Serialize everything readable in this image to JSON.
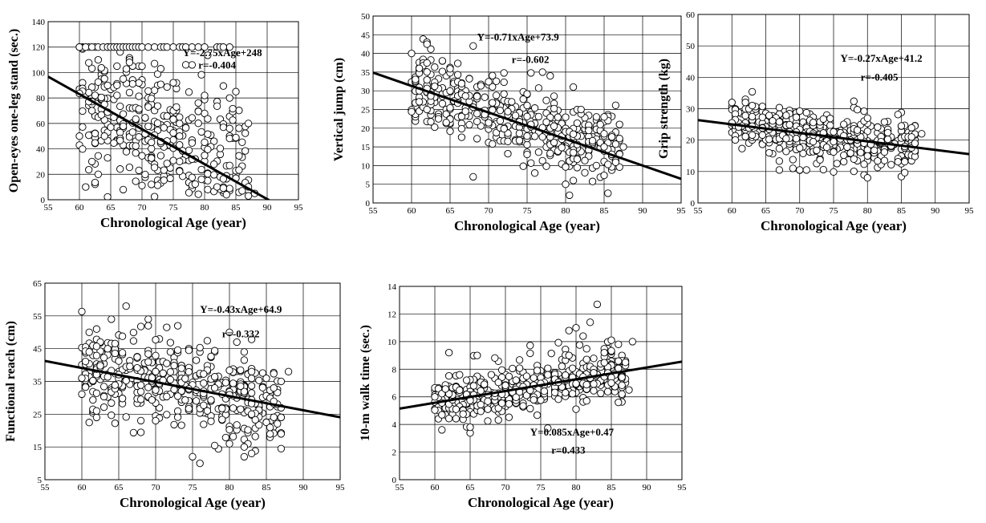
{
  "chart_data": [
    {
      "id": "oneleg",
      "type": "scatter",
      "xlabel": "Chronological Age (year)",
      "ylabel": "Open-eyes one-leg stand (sec.)",
      "xlim": [
        55,
        95
      ],
      "ylim": [
        0,
        140
      ],
      "xticks": [
        55,
        60,
        65,
        70,
        75,
        80,
        85,
        90,
        95
      ],
      "yticks": [
        0,
        20,
        40,
        60,
        80,
        100,
        120,
        140
      ],
      "grid": true,
      "equation": "Y=-2.75xAge+248",
      "r_label": "r=-0.404",
      "equation_pos": [
        76.5,
        113
      ],
      "r_pos": [
        79,
        103
      ],
      "regression": {
        "slope": -2.75,
        "intercept": 248
      },
      "seed": 11,
      "n_points": 390,
      "noise_sd": 30,
      "cap": 120,
      "points": [
        [
          60,
          50
        ],
        [
          61,
          10
        ],
        [
          62,
          70
        ],
        [
          62,
          30
        ],
        [
          63,
          110
        ],
        [
          63,
          20
        ],
        [
          64,
          75
        ],
        [
          64,
          50
        ],
        [
          66,
          105
        ],
        [
          66,
          90
        ],
        [
          67,
          95
        ],
        [
          68,
          110
        ],
        [
          68,
          108
        ],
        [
          70,
          105
        ],
        [
          72,
          107
        ],
        [
          73,
          103
        ],
        [
          75,
          92
        ],
        [
          78,
          106
        ],
        [
          80,
          82
        ],
        [
          84,
          80
        ],
        [
          85,
          85
        ],
        [
          87,
          60
        ],
        [
          83,
          57
        ],
        [
          84,
          56
        ],
        [
          88,
          5
        ],
        [
          87,
          3
        ],
        [
          86,
          7
        ]
      ],
      "capped_x": [
        61,
        62,
        63,
        63.8,
        64.5,
        65,
        65.5,
        66,
        66.5,
        67,
        67.5,
        68,
        68.5,
        69,
        69.5,
        70,
        71,
        72,
        73,
        73.5,
        74,
        75,
        76,
        76.5,
        77,
        78,
        79,
        80,
        82,
        82.5,
        83
      ]
    },
    {
      "id": "jump",
      "type": "scatter",
      "xlabel": "Chronological Age (year)",
      "ylabel": "Vertical jump (cm)",
      "xlim": [
        55,
        95
      ],
      "ylim": [
        0,
        50
      ],
      "xticks": [
        55,
        60,
        65,
        70,
        75,
        80,
        85,
        90,
        95
      ],
      "yticks": [
        0,
        5,
        10,
        15,
        20,
        25,
        30,
        35,
        40,
        45,
        50
      ],
      "grid": true,
      "equation": "Y=-0.71xAge+73.9",
      "r_label": "r=-0.602",
      "equation_pos": [
        68.5,
        43.5
      ],
      "r_pos": [
        73,
        37.5
      ],
      "regression": {
        "slope": -0.71,
        "intercept": 73.9
      },
      "seed": 23,
      "n_points": 420,
      "noise_sd": 5,
      "points": [
        [
          60,
          40
        ],
        [
          62,
          43
        ],
        [
          62,
          42.5
        ],
        [
          68,
          42
        ],
        [
          64,
          38
        ],
        [
          61,
          36
        ],
        [
          62,
          25
        ],
        [
          61,
          30
        ],
        [
          68,
          7
        ],
        [
          80,
          5
        ],
        [
          81,
          6
        ],
        [
          77,
          35
        ],
        [
          78,
          34
        ],
        [
          81,
          31
        ],
        [
          85,
          15
        ],
        [
          87,
          21
        ],
        [
          87.5,
          15
        ],
        [
          86,
          13
        ],
        [
          82,
          25
        ],
        [
          84,
          23
        ],
        [
          85,
          23
        ]
      ]
    },
    {
      "id": "grip",
      "type": "scatter",
      "xlabel": "Chronological Age (year)",
      "ylabel": "Grip strength (kg)",
      "xlim": [
        55,
        95
      ],
      "ylim": [
        0,
        60
      ],
      "xticks": [
        55,
        60,
        65,
        70,
        75,
        80,
        85,
        90,
        95
      ],
      "yticks": [
        0,
        10,
        20,
        30,
        40,
        50,
        60
      ],
      "grid": true,
      "equation": "Y=-0.27xAge+41.2",
      "r_label": "r=-0.405",
      "equation_pos": [
        76,
        45
      ],
      "r_pos": [
        79,
        39
      ],
      "regression": {
        "slope": -0.27,
        "intercept": 41.2
      },
      "seed": 37,
      "n_points": 420,
      "noise_sd": 4,
      "points": [
        [
          60,
          25.5
        ],
        [
          62,
          33
        ],
        [
          62,
          32
        ],
        [
          67,
          10.5
        ],
        [
          69,
          11
        ],
        [
          70,
          10.5
        ],
        [
          71,
          10.5
        ],
        [
          80,
          8
        ],
        [
          80,
          27
        ],
        [
          85,
          24.5
        ],
        [
          86,
          21
        ],
        [
          87,
          19
        ],
        [
          88,
          22
        ],
        [
          86.5,
          21
        ]
      ]
    },
    {
      "id": "reach",
      "type": "scatter",
      "xlabel": "Chronological Age (year)",
      "ylabel": "Functional reach (cm)",
      "xlim": [
        55,
        95
      ],
      "ylim": [
        5,
        65
      ],
      "xticks": [
        55,
        60,
        65,
        70,
        75,
        80,
        85,
        90,
        95
      ],
      "yticks": [
        5,
        15,
        25,
        35,
        45,
        55,
        65
      ],
      "grid": true,
      "equation": "Y=-0.43xAge+64.9",
      "r_label": "r=-0.332",
      "equation_pos": [
        76,
        56
      ],
      "r_pos": [
        79,
        48.5
      ],
      "regression": {
        "slope": -0.43,
        "intercept": 64.9
      },
      "seed": 51,
      "n_points": 430,
      "noise_sd": 6.5,
      "points": [
        [
          60,
          36
        ],
        [
          61,
          50
        ],
        [
          61,
          44
        ],
        [
          62,
          24
        ],
        [
          62,
          26
        ],
        [
          64,
          54
        ],
        [
          66,
          58
        ],
        [
          69,
          54
        ],
        [
          69,
          52
        ],
        [
          73,
          52
        ],
        [
          80,
          50
        ],
        [
          81,
          47
        ],
        [
          75,
          12
        ],
        [
          76,
          10
        ],
        [
          82,
          15
        ],
        [
          82,
          12
        ],
        [
          83,
          13
        ],
        [
          83,
          38
        ],
        [
          86,
          33
        ],
        [
          87,
          24
        ],
        [
          88,
          38
        ],
        [
          87,
          35
        ]
      ]
    },
    {
      "id": "walk",
      "type": "scatter",
      "xlabel": "Chronological Age (year)",
      "ylabel": "10-m walk time (sec.)",
      "xlim": [
        55,
        95
      ],
      "ylim": [
        0,
        14
      ],
      "xticks": [
        55,
        60,
        65,
        70,
        75,
        80,
        85,
        90,
        95
      ],
      "yticks": [
        0,
        2,
        4,
        6,
        8,
        10,
        12,
        14
      ],
      "grid": true,
      "equation": "Y=0.085xAge+0.47",
      "r_label": "r=0.433",
      "equation_pos": [
        73.5,
        3.2
      ],
      "r_pos": [
        76.5,
        1.9
      ],
      "regression": {
        "slope": 0.085,
        "intercept": 0.47
      },
      "seed": 67,
      "n_points": 430,
      "noise_sd": 0.9,
      "points": [
        [
          60,
          6
        ],
        [
          61,
          4.7
        ],
        [
          62,
          9.2
        ],
        [
          65,
          3.8
        ],
        [
          66,
          9
        ],
        [
          79,
          10.8
        ],
        [
          80,
          11
        ],
        [
          81,
          10.4
        ],
        [
          82,
          11.4
        ],
        [
          83,
          12.7
        ],
        [
          84,
          9.2
        ],
        [
          85,
          10.1
        ],
        [
          86,
          5.6
        ],
        [
          88,
          10
        ],
        [
          87,
          8.5
        ],
        [
          87.5,
          6.5
        ]
      ]
    }
  ],
  "colors": {
    "axis": "#000000",
    "grid": "#000000",
    "regression": "#000000",
    "marker_fill": "#ffffff",
    "marker_stroke": "#000000"
  }
}
